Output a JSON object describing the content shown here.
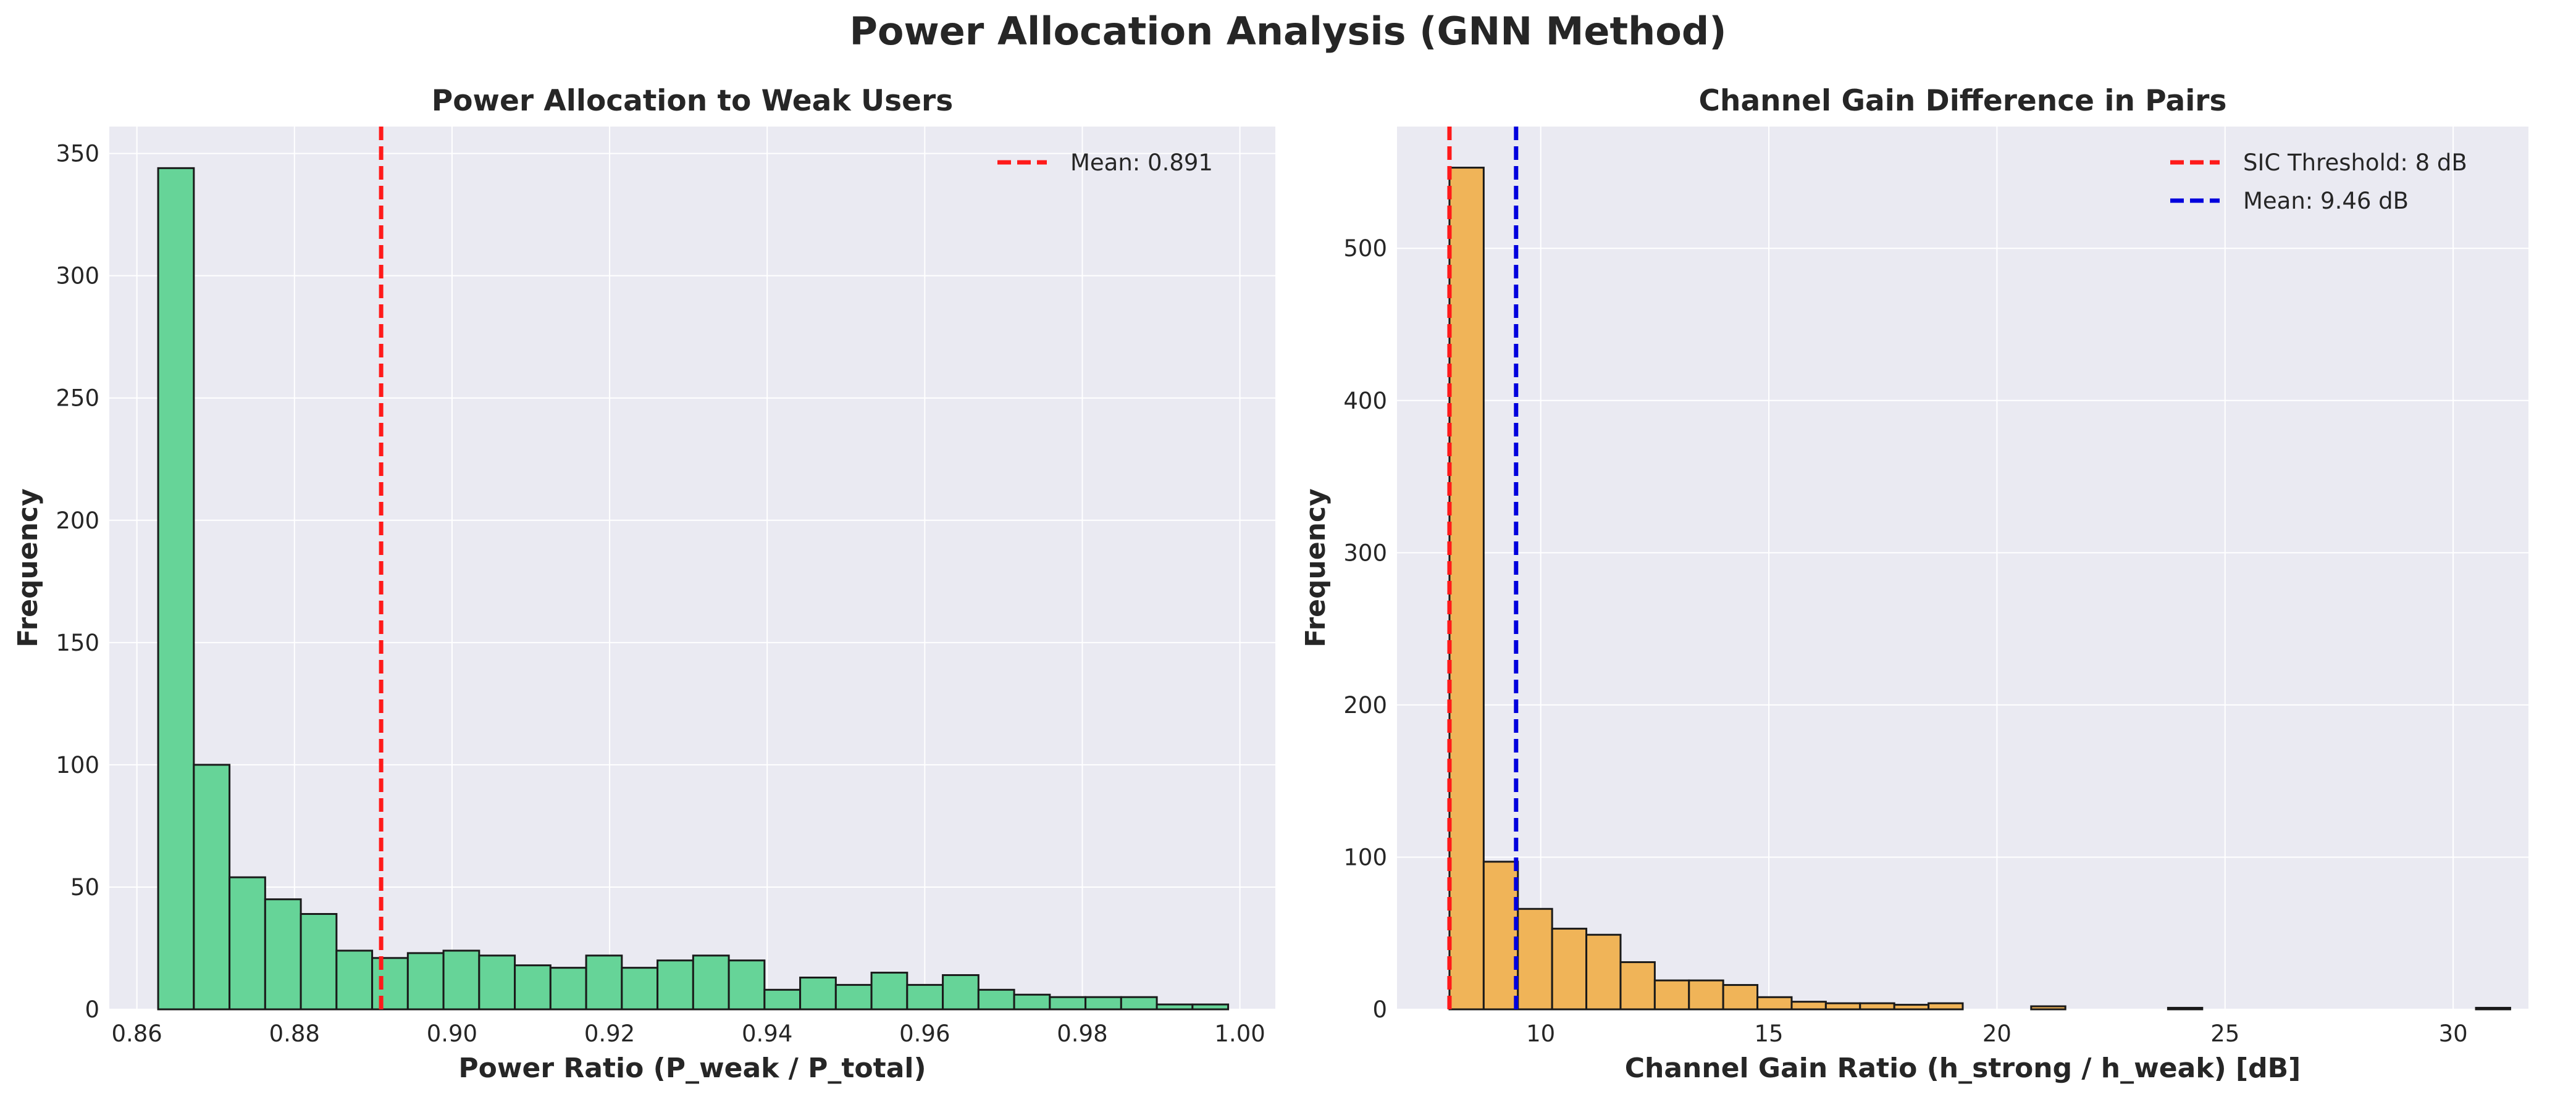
{
  "figure": {
    "title": "Power Allocation Analysis (GNN Method)"
  },
  "colors": {
    "plot_bg": "#eaeaf2",
    "grid": "#ffffff",
    "bar_edge": "#1a1a1a",
    "left_bars": "#66d498",
    "right_bars": "#f0b458",
    "threshold_line": "#ff1a1a",
    "mean_line_left": "#ff1a1a",
    "mean_line_right": "#0000dd"
  },
  "chart_data": [
    {
      "type": "bar",
      "subtype": "histogram",
      "title": "Power Allocation to Weak Users",
      "xlabel": "Power Ratio (P_weak / P_total)",
      "ylabel": "Frequency",
      "xlim": [
        0.8565,
        1.0045
      ],
      "ylim": [
        0,
        361
      ],
      "xticks": [
        0.86,
        0.88,
        0.9,
        0.92,
        0.94,
        0.96,
        0.98,
        1.0
      ],
      "xtick_labels": [
        "0.86",
        "0.88",
        "0.90",
        "0.92",
        "0.94",
        "0.96",
        "0.98",
        "1.00"
      ],
      "yticks": [
        0,
        50,
        100,
        150,
        200,
        250,
        300,
        350
      ],
      "ytick_labels": [
        "0",
        "50",
        "100",
        "150",
        "200",
        "250",
        "300",
        "350"
      ],
      "grid": true,
      "bin_start": 0.8627,
      "bin_width": 0.004527,
      "values": [
        344,
        100,
        54,
        45,
        39,
        24,
        21,
        23,
        24,
        22,
        18,
        17,
        22,
        17,
        20,
        22,
        20,
        8,
        13,
        10,
        15,
        10,
        14,
        8,
        6,
        5,
        5,
        5,
        2,
        2
      ],
      "reference_lines": [
        {
          "x": 0.891,
          "label": "Mean: 0.891",
          "style": "dashed",
          "color": "#ff1a1a"
        }
      ],
      "legend_position": "top-right"
    },
    {
      "type": "bar",
      "subtype": "histogram",
      "title": "Channel Gain Difference in Pairs",
      "xlabel": "Channel Gain Ratio (h_strong / h_weak) [dB]",
      "ylabel": "Frequency",
      "xlim": [
        6.85,
        31.65
      ],
      "ylim": [
        0,
        580
      ],
      "xticks": [
        10,
        15,
        20,
        25,
        30
      ],
      "xtick_labels": [
        "10",
        "15",
        "20",
        "25",
        "30"
      ],
      "yticks": [
        0,
        100,
        200,
        300,
        400,
        500
      ],
      "ytick_labels": [
        "0",
        "100",
        "200",
        "300",
        "400",
        "500"
      ],
      "grid": true,
      "bin_start": 8.0,
      "bin_width": 0.75,
      "values": [
        553,
        97,
        66,
        53,
        49,
        31,
        19,
        19,
        16,
        8,
        5,
        4,
        4,
        3,
        4,
        0,
        0,
        2,
        0,
        0,
        0,
        1,
        0,
        0,
        0,
        0,
        0,
        0,
        0,
        0,
        1
      ],
      "reference_lines": [
        {
          "x": 8.0,
          "label": "SIC Threshold: 8 dB",
          "style": "dashed",
          "color": "#ff1a1a"
        },
        {
          "x": 9.46,
          "label": "Mean: 9.46 dB",
          "style": "dashed",
          "color": "#0000dd"
        }
      ],
      "legend_position": "top-right"
    }
  ]
}
